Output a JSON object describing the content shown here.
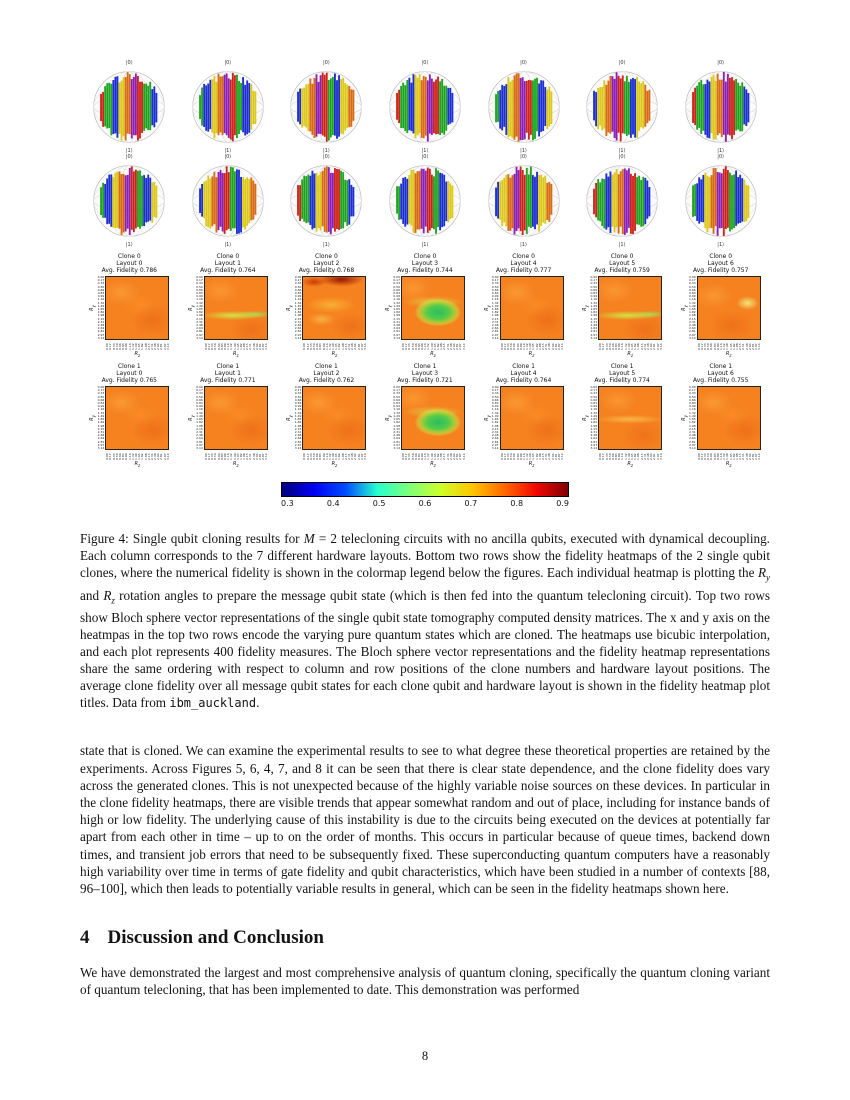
{
  "page_number": "8",
  "figure": {
    "columns": 7,
    "bloch_labels": {
      "top": "|0⟩",
      "bottom": "|1⟩"
    },
    "heatmap_rows": [
      {
        "panels": [
          {
            "clone": "Clone 0",
            "layout": "Layout 0",
            "fidelity": "Avg. Fidelity 0.786",
            "pattern": "plain"
          },
          {
            "clone": "Clone 0",
            "layout": "Layout 1",
            "fidelity": "Avg. Fidelity 0.764",
            "pattern": "band"
          },
          {
            "clone": "Clone 0",
            "layout": "Layout 2",
            "fidelity": "Avg. Fidelity 0.768",
            "pattern": "darktop"
          },
          {
            "clone": "Clone 0",
            "layout": "Layout 3",
            "fidelity": "Avg. Fidelity 0.744",
            "pattern": "greenblob"
          },
          {
            "clone": "Clone 0",
            "layout": "Layout 4",
            "fidelity": "Avg. Fidelity 0.777",
            "pattern": "plain"
          },
          {
            "clone": "Clone 0",
            "layout": "Layout 5",
            "fidelity": "Avg. Fidelity 0.759",
            "pattern": "band"
          },
          {
            "clone": "Clone 0",
            "layout": "Layout 6",
            "fidelity": "Avg. Fidelity 0.757",
            "pattern": "spot"
          }
        ]
      },
      {
        "panels": [
          {
            "clone": "Clone 1",
            "layout": "Layout 0",
            "fidelity": "Avg. Fidelity 0.765",
            "pattern": "plain"
          },
          {
            "clone": "Clone 1",
            "layout": "Layout 1",
            "fidelity": "Avg. Fidelity 0.771",
            "pattern": "plain"
          },
          {
            "clone": "Clone 1",
            "layout": "Layout 2",
            "fidelity": "Avg. Fidelity 0.762",
            "pattern": "plain"
          },
          {
            "clone": "Clone 1",
            "layout": "Layout 3",
            "fidelity": "Avg. Fidelity 0.721",
            "pattern": "greenblob"
          },
          {
            "clone": "Clone 1",
            "layout": "Layout 4",
            "fidelity": "Avg. Fidelity 0.764",
            "pattern": "plain"
          },
          {
            "clone": "Clone 1",
            "layout": "Layout 5",
            "fidelity": "Avg. Fidelity 0.774",
            "pattern": "faintband"
          },
          {
            "clone": "Clone 1",
            "layout": "Layout 6",
            "fidelity": "Avg. Fidelity 0.755",
            "pattern": "plain"
          }
        ]
      }
    ],
    "axes": {
      "x_title_main": "R",
      "x_title_sub": "z",
      "y_title_main": "R",
      "y_title_sub": "y",
      "ticks": [
        "0.00",
        "0.17",
        "0.33",
        "0.50",
        "0.66",
        "0.83",
        "0.99",
        "1.16",
        "1.32",
        "1.49",
        "1.65",
        "1.82",
        "1.98",
        "2.15",
        "2.31",
        "2.48",
        "2.64",
        "2.81",
        "2.97",
        "3.14"
      ]
    },
    "colorbar": {
      "ticks": [
        "0.3",
        "0.4",
        "0.5",
        "0.6",
        "0.7",
        "0.8",
        "0.9"
      ],
      "colors": [
        "#000080",
        "#0000f1",
        "#004cff",
        "#29ffce",
        "#7dff7a",
        "#ceff29",
        "#ffc400",
        "#ff6800",
        "#f10800",
        "#800000"
      ]
    },
    "caption": {
      "label": "Figure 4:",
      "segments": [
        {
          "t": " Single qubit cloning results for ",
          "s": "n"
        },
        {
          "t": "M",
          "s": "i"
        },
        {
          "t": " = 2 telecloning circuits with no ancilla qubits, executed with dynamical decoupling. Each column corresponds to the 7 different hardware layouts. Bottom two rows show the fidelity heatmaps of the 2 single qubit clones, where the numerical fidelity is shown in the colormap legend below the figures. Each individual heatmap is plotting the ",
          "s": "n"
        },
        {
          "t": "R",
          "s": "i"
        },
        {
          "t": "y",
          "s": "sub"
        },
        {
          "t": " and ",
          "s": "n"
        },
        {
          "t": "R",
          "s": "i"
        },
        {
          "t": "z",
          "s": "sub"
        },
        {
          "t": " rotation angles to prepare the message qubit state (which is then fed into the quantum telecloning circuit). Top two rows show Bloch sphere vector representations of the single qubit state tomography computed density matrices. The x and y axis on the heatmpas in the top two rows encode the varying pure quantum states which are cloned. The heatmaps use bicubic interpolation, and each plot represents 400 fidelity measures. The Bloch sphere vector representations and the fidelity heatmap representations share the same ordering with respect to column and row positions of the clone numbers and hardware layout positions. The average clone fidelity over all message qubit states for each clone qubit and hardware layout is shown in the fidelity heatmap plot titles. Data from ",
          "s": "n"
        },
        {
          "t": "ibm_auckland",
          "s": "m"
        },
        {
          "t": ".",
          "s": "n"
        }
      ]
    }
  },
  "body": {
    "paragraph1": "state that is cloned. We can examine the experimental results to see to what degree these theoretical properties are retained by the experiments. Across Figures 5, 6, 4, 7, and 8 it can be seen that there is clear state dependence, and the clone fidelity does vary across the generated clones. This is not unexpected because of the highly variable noise sources on these devices. In particular in the clone fidelity heatmaps, there are visible trends that appear somewhat random and out of place, including for instance bands of high or low fidelity. The underlying cause of this instability is due to the circuits being executed on the devices at potentially far apart from each other in time – up to on the order of months. This occurs in particular because of queue times, backend down times, and transient job errors that need to be subsequently fixed. These superconducting quantum computers have a reasonably high variability over time in terms of gate fidelity and qubit characteristics, which have been studied in a number of contexts [88, 96–100], which then leads to potentially variable results in general, which can be seen in the fidelity heatmaps shown here.",
    "paragraph2": "We have demonstrated the largest and most comprehensive analysis of quantum cloning, specifically the quantum cloning variant of quantum telecloning, that has been implemented to date. This demonstration was performed"
  },
  "section": {
    "number": "4",
    "title": "Discussion and Conclusion"
  }
}
